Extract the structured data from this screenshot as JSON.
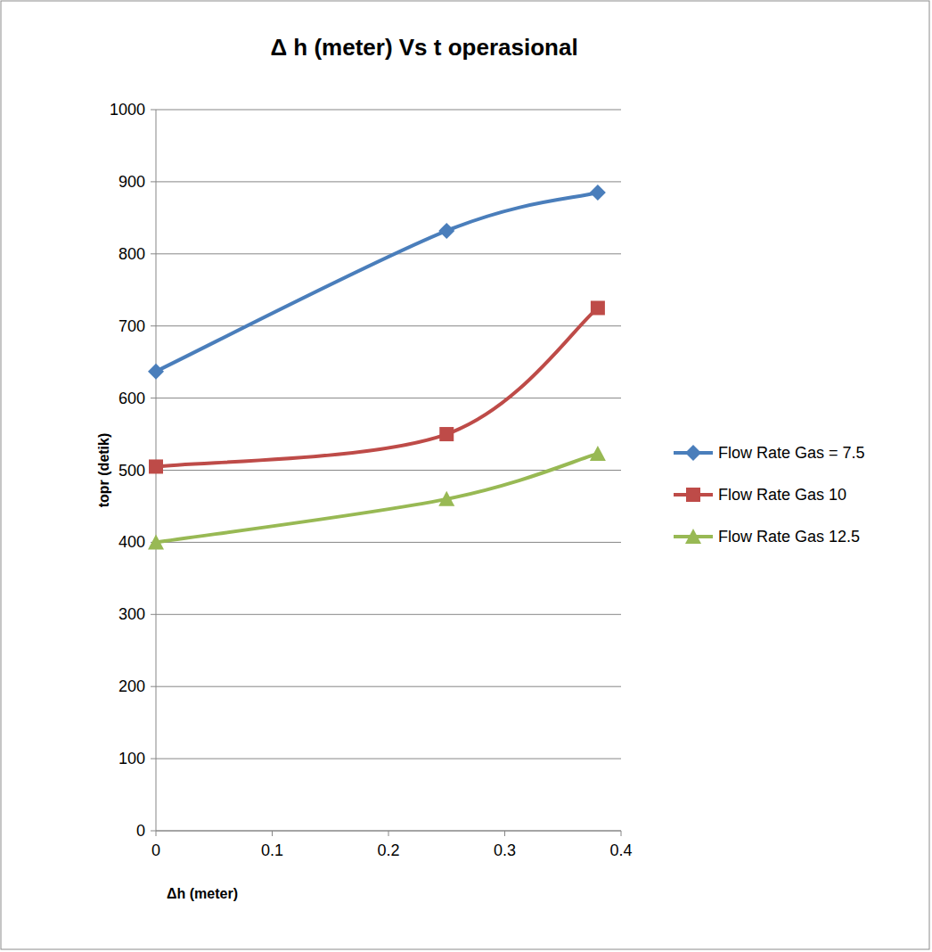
{
  "chart_data": {
    "type": "line",
    "title": "Δ h (meter) Vs t operasional",
    "x_label": "Δh (meter)",
    "y_label": "topr (detik)",
    "x": [
      0,
      0.25,
      0.38
    ],
    "series": [
      {
        "name": "Flow Rate Gas = 7.5",
        "color": "#4a7ebb",
        "marker": "diamond",
        "values": [
          637,
          832,
          885
        ]
      },
      {
        "name": "Flow Rate Gas 10",
        "color": "#be4b48",
        "marker": "square",
        "values": [
          505,
          550,
          725
        ]
      },
      {
        "name": "Flow Rate Gas 12.5",
        "color": "#98b954",
        "marker": "triangle",
        "values": [
          400,
          460,
          523
        ]
      }
    ],
    "xlim": [
      0,
      0.4
    ],
    "xticks": [
      0,
      0.1,
      0.2,
      0.3,
      0.4
    ],
    "ylim": [
      0,
      1000
    ],
    "yticks": [
      0,
      100,
      200,
      300,
      400,
      500,
      600,
      700,
      800,
      900,
      1000
    ],
    "grid": true,
    "legend": "right"
  }
}
